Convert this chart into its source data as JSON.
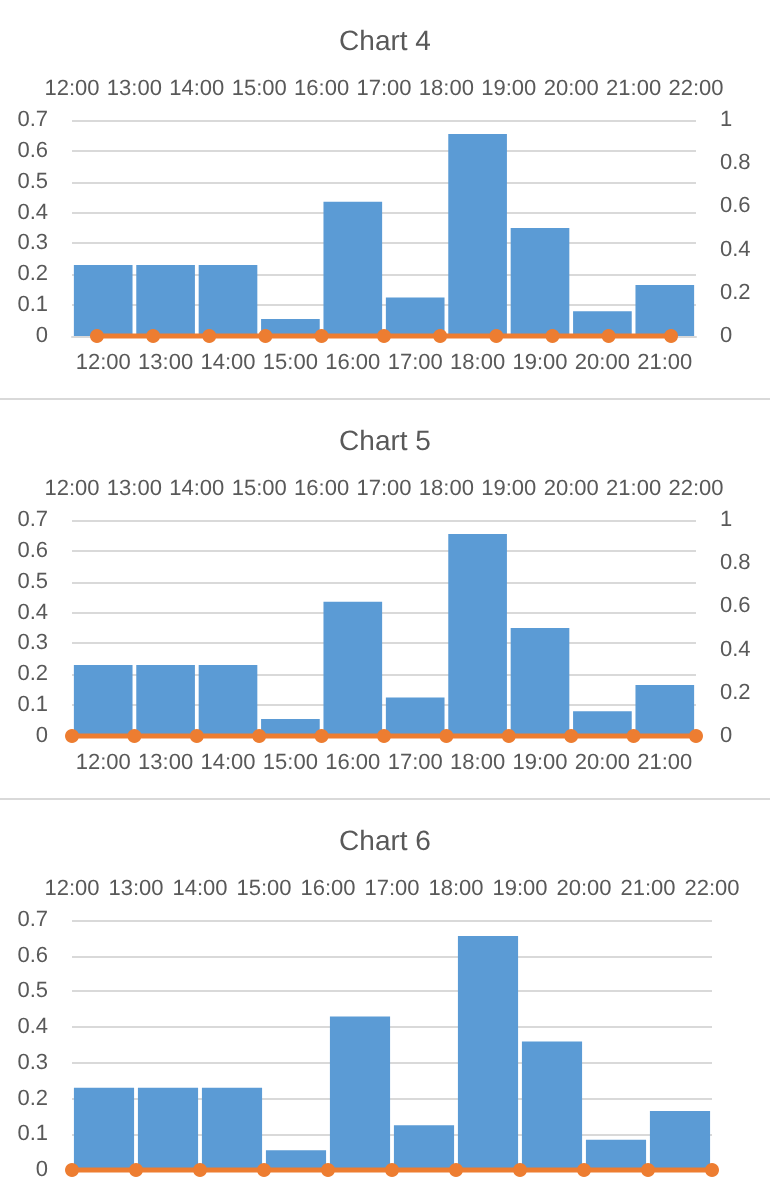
{
  "chart_data": [
    {
      "type": "bar",
      "title": "Chart 4",
      "categories": [
        "12:00",
        "13:00",
        "14:00",
        "15:00",
        "16:00",
        "17:00",
        "18:00",
        "19:00",
        "20:00",
        "21:00"
      ],
      "x2lim": [
        12,
        22
      ],
      "ylim": [
        0,
        0.7
      ],
      "y2lim": [
        0,
        1
      ],
      "grid": "y",
      "marker": "circle",
      "x2ticks": [
        {
          "value": 12,
          "label": "12:00"
        },
        {
          "value": 13,
          "label": "13:00"
        },
        {
          "value": 14,
          "label": "14:00"
        },
        {
          "value": 15,
          "label": "15:00"
        },
        {
          "value": 16,
          "label": "16:00"
        },
        {
          "value": 17,
          "label": "17:00"
        },
        {
          "value": 18,
          "label": "18:00"
        },
        {
          "value": 19,
          "label": "19:00"
        },
        {
          "value": 20,
          "label": "20:00"
        },
        {
          "value": 21,
          "label": "21:00"
        },
        {
          "value": 22,
          "label": "22:00"
        }
      ],
      "yticks": [
        0,
        0.1,
        0.2,
        0.3,
        0.4,
        0.5,
        0.6,
        0.7
      ],
      "y2ticks": [
        0,
        0.2,
        0.4,
        0.6,
        0.8,
        1
      ],
      "series": [
        {
          "color": "#5b9bd5",
          "values": [
            0.23,
            0.23,
            0.23,
            0.055,
            0.435,
            0.125,
            0.655,
            0.35,
            0.08,
            0.165
          ]
        },
        {
          "type": "line",
          "color": "#ed7d31",
          "axis": "x2",
          "x": [
            12.4,
            13.3,
            14.2,
            15.1,
            16.0,
            17.0,
            17.9,
            18.8,
            19.7,
            20.6,
            21.6
          ],
          "values": [
            0,
            0,
            0,
            0,
            0,
            0,
            0,
            0,
            0,
            0,
            0
          ]
        }
      ]
    },
    {
      "type": "bar",
      "title": "Chart 5",
      "categories": [
        "12:00",
        "13:00",
        "14:00",
        "15:00",
        "16:00",
        "17:00",
        "18:00",
        "19:00",
        "20:00",
        "21:00"
      ],
      "x2lim": [
        12,
        22
      ],
      "ylim": [
        0,
        0.7
      ],
      "y2lim": [
        0,
        1
      ],
      "grid": "y",
      "marker": "circle",
      "x2ticks": [
        {
          "value": 12,
          "label": "12:00"
        },
        {
          "value": 13,
          "label": "13:00"
        },
        {
          "value": 14,
          "label": "14:00"
        },
        {
          "value": 15,
          "label": "15:00"
        },
        {
          "value": 16,
          "label": "16:00"
        },
        {
          "value": 17,
          "label": "17:00"
        },
        {
          "value": 18,
          "label": "18:00"
        },
        {
          "value": 19,
          "label": "19:00"
        },
        {
          "value": 20,
          "label": "20:00"
        },
        {
          "value": 21,
          "label": "21:00"
        },
        {
          "value": 22,
          "label": "22:00"
        }
      ],
      "yticks": [
        0,
        0.1,
        0.2,
        0.3,
        0.4,
        0.5,
        0.6,
        0.7
      ],
      "y2ticks": [
        0,
        0.2,
        0.4,
        0.6,
        0.8,
        1
      ],
      "series": [
        {
          "color": "#5b9bd5",
          "values": [
            0.23,
            0.23,
            0.23,
            0.055,
            0.435,
            0.125,
            0.655,
            0.35,
            0.08,
            0.165
          ]
        },
        {
          "type": "line",
          "color": "#ed7d31",
          "axis": "x2",
          "x": [
            12,
            13,
            14,
            15,
            16,
            17,
            18,
            19,
            20,
            21,
            22
          ],
          "values": [
            0,
            0,
            0,
            0,
            0,
            0,
            0,
            0,
            0,
            0,
            0
          ]
        }
      ]
    },
    {
      "type": "bar",
      "title": "Chart 6",
      "categories": [
        null,
        null,
        null,
        null,
        null,
        null,
        null,
        null,
        null,
        null
      ],
      "x2lim": [
        12,
        22
      ],
      "ylim": [
        0,
        0.7
      ],
      "grid": "y",
      "marker": "circle",
      "x2ticks": [
        {
          "value": 12,
          "label": "12:00"
        },
        {
          "value": 13,
          "label": "13:00"
        },
        {
          "value": 14,
          "label": "14:00"
        },
        {
          "value": 15,
          "label": "15:00"
        },
        {
          "value": 16,
          "label": "16:00"
        },
        {
          "value": 17,
          "label": "17:00"
        },
        {
          "value": 18,
          "label": "18:00"
        },
        {
          "value": 19,
          "label": "19:00"
        },
        {
          "value": 20,
          "label": "20:00"
        },
        {
          "value": 21,
          "label": "21:00"
        },
        {
          "value": 22,
          "label": "22:00"
        }
      ],
      "yticks": [
        0,
        0.1,
        0.2,
        0.3,
        0.4,
        0.5,
        0.6,
        0.7
      ],
      "series": [
        {
          "color": "#5b9bd5",
          "values": [
            0.23,
            0.23,
            0.23,
            0.055,
            0.43,
            0.125,
            0.655,
            0.36,
            0.085,
            0.165
          ]
        },
        {
          "type": "line",
          "color": "#ed7d31",
          "axis": "x2",
          "x": [
            12,
            13,
            14,
            15,
            16,
            17,
            18,
            19,
            20,
            21,
            22
          ],
          "values": [
            0,
            0,
            0,
            0,
            0,
            0,
            0,
            0,
            0,
            0,
            0
          ]
        }
      ]
    }
  ]
}
